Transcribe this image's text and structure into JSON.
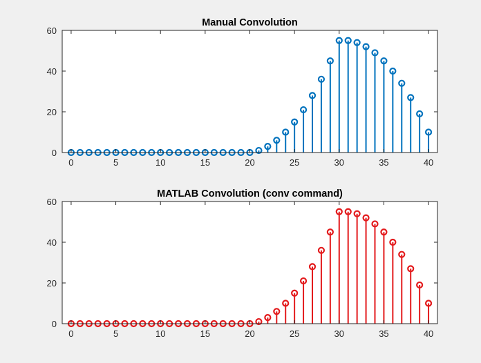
{
  "figure": {
    "background": "#f0f0f0"
  },
  "chart_data": [
    {
      "type": "stem",
      "title": "Manual Convolution",
      "xlabel": "",
      "ylabel": "",
      "xlim": [
        -1,
        41
      ],
      "ylim": [
        0,
        60
      ],
      "xticks": [
        0,
        5,
        10,
        15,
        20,
        25,
        30,
        35,
        40
      ],
      "yticks": [
        0,
        20,
        40,
        60
      ],
      "grid": false,
      "color": "#0072bd",
      "x": [
        0,
        1,
        2,
        3,
        4,
        5,
        6,
        7,
        8,
        9,
        10,
        11,
        12,
        13,
        14,
        15,
        16,
        17,
        18,
        19,
        20,
        21,
        22,
        23,
        24,
        25,
        26,
        27,
        28,
        29,
        30,
        31,
        32,
        33,
        34,
        35,
        36,
        37,
        38,
        39,
        40
      ],
      "values": [
        0,
        0,
        0,
        0,
        0,
        0,
        0,
        0,
        0,
        0,
        0,
        0,
        0,
        0,
        0,
        0,
        0,
        0,
        0,
        0,
        0,
        1,
        3,
        6,
        10,
        15,
        21,
        28,
        36,
        45,
        55,
        55,
        54,
        52,
        49,
        45,
        40,
        34,
        27,
        19,
        10
      ]
    },
    {
      "type": "stem",
      "title": "MATLAB Convolution (conv command)",
      "xlabel": "",
      "ylabel": "",
      "xlim": [
        -1,
        41
      ],
      "ylim": [
        0,
        60
      ],
      "xticks": [
        0,
        5,
        10,
        15,
        20,
        25,
        30,
        35,
        40
      ],
      "yticks": [
        0,
        20,
        40,
        60
      ],
      "grid": false,
      "color": "#e31a1c",
      "x": [
        0,
        1,
        2,
        3,
        4,
        5,
        6,
        7,
        8,
        9,
        10,
        11,
        12,
        13,
        14,
        15,
        16,
        17,
        18,
        19,
        20,
        21,
        22,
        23,
        24,
        25,
        26,
        27,
        28,
        29,
        30,
        31,
        32,
        33,
        34,
        35,
        36,
        37,
        38,
        39,
        40
      ],
      "values": [
        0,
        0,
        0,
        0,
        0,
        0,
        0,
        0,
        0,
        0,
        0,
        0,
        0,
        0,
        0,
        0,
        0,
        0,
        0,
        0,
        0,
        1,
        3,
        6,
        10,
        15,
        21,
        28,
        36,
        45,
        55,
        55,
        54,
        52,
        49,
        45,
        40,
        34,
        27,
        19,
        10
      ]
    }
  ]
}
